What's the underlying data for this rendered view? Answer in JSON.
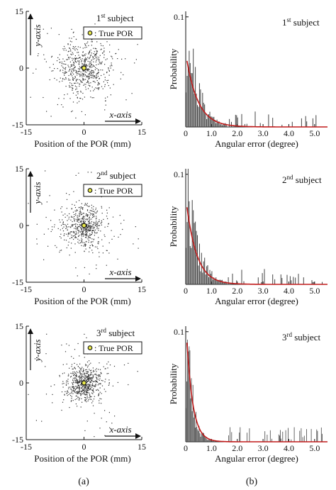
{
  "panel_labels": [
    "(a)",
    "(b)"
  ],
  "legend_true_por": "True POR",
  "chart_data": [
    {
      "type": "scatter",
      "subject": "1",
      "subject_suffix": "st",
      "subject_word": "subject",
      "xlabel": "Position of the POR (mm)",
      "x_axis_arrow": "x-axis",
      "y_axis_arrow": "y-axis",
      "xlim": [
        -15,
        15
      ],
      "ylim": [
        -15,
        15
      ],
      "xticks": [
        -15,
        0,
        15
      ],
      "yticks": [
        15,
        0,
        -15
      ],
      "true_por": [
        0,
        0
      ],
      "spread": 3.5,
      "n_points": 650,
      "seed": 11
    },
    {
      "type": "bar",
      "subject": "1",
      "subject_suffix": "st",
      "subject_word": "subject",
      "xlabel": "Angular error (degree)",
      "ylabel": "Probability",
      "xlim": [
        0,
        5.5
      ],
      "ylim": [
        0,
        0.105
      ],
      "xticks": [
        0,
        1.0,
        2.0,
        3.0,
        4.0,
        5.0
      ],
      "xtick_labels": [
        "0",
        "1.0",
        "2.0",
        "3.0",
        "4.0",
        "5.0"
      ],
      "yticks": [
        0.1
      ],
      "ytick_labels": [
        "0.1"
      ],
      "bin_width": 0.04,
      "peak": 0.085,
      "decay": 2.4,
      "fit_peak": 0.06,
      "fit_decay": 2.2,
      "seed": 21
    },
    {
      "type": "scatter",
      "subject": "2",
      "subject_suffix": "nd",
      "subject_word": "subject",
      "xlabel": "Position of the POR (mm)",
      "x_axis_arrow": "x-axis",
      "y_axis_arrow": "y-axis",
      "xlim": [
        -15,
        15
      ],
      "ylim": [
        -15,
        15
      ],
      "xticks": [
        -15,
        0,
        15
      ],
      "yticks": [
        15,
        0,
        -15
      ],
      "true_por": [
        0,
        0
      ],
      "spread": 2.8,
      "n_points": 600,
      "seed": 12
    },
    {
      "type": "bar",
      "subject": "2",
      "subject_suffix": "nd",
      "subject_word": "subject",
      "xlabel": "Angular error (degree)",
      "ylabel": "Probability",
      "xlim": [
        0,
        5.5
      ],
      "ylim": [
        0,
        0.105
      ],
      "xticks": [
        0,
        1.0,
        2.0,
        3.0,
        4.0,
        5.0
      ],
      "xtick_labels": [
        "0",
        "1.0",
        "2.0",
        "3.0",
        "4.0",
        "5.0"
      ],
      "yticks": [
        0.1
      ],
      "ytick_labels": [
        "0.1"
      ],
      "bin_width": 0.04,
      "peak": 0.09,
      "decay": 2.6,
      "fit_peak": 0.07,
      "fit_decay": 2.5,
      "seed": 22
    },
    {
      "type": "scatter",
      "subject": "3",
      "subject_suffix": "rd",
      "subject_word": "subject",
      "xlabel": "Position of the POR (mm)",
      "x_axis_arrow": "x-axis",
      "y_axis_arrow": "y-axis",
      "xlim": [
        -15,
        15
      ],
      "ylim": [
        -15,
        15
      ],
      "xticks": [
        -15,
        0,
        15
      ],
      "yticks": [
        15,
        0,
        -15
      ],
      "true_por": [
        0,
        0
      ],
      "spread": 2.2,
      "n_points": 650,
      "seed": 13
    },
    {
      "type": "bar",
      "subject": "3",
      "subject_suffix": "rd",
      "subject_word": "subject",
      "xlabel": "Angular error (degree)",
      "ylabel": "Probability",
      "xlim": [
        0,
        5.5
      ],
      "ylim": [
        0,
        0.105
      ],
      "xticks": [
        0,
        1.0,
        2.0,
        3.0,
        4.0,
        5.0
      ],
      "xtick_labels": [
        "0",
        "1.0",
        "2.0",
        "3.0",
        "4.0",
        "5.0"
      ],
      "yticks": [
        0.1
      ],
      "ytick_labels": [
        "0.1"
      ],
      "bin_width": 0.03,
      "peak": 0.09,
      "decay": 4.5,
      "fit_peak": 0.09,
      "fit_decay": 4.2,
      "seed": 23
    }
  ]
}
